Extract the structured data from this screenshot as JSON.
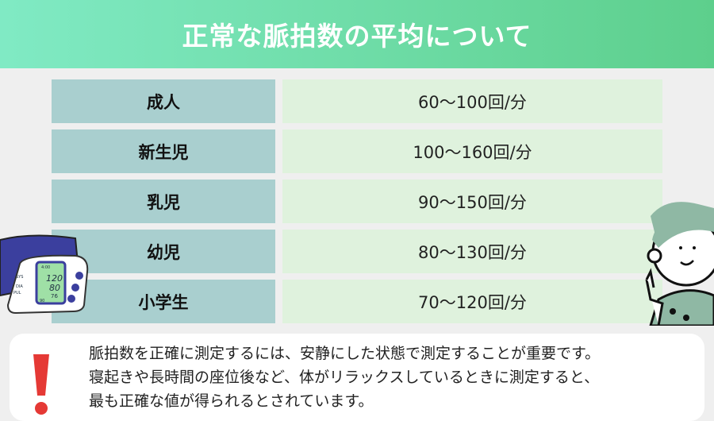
{
  "title": "正常な脈拍数の平均について",
  "rows": [
    {
      "label": "成人",
      "value": "60〜100回/分"
    },
    {
      "label": "新生児",
      "value": "100〜160回/分"
    },
    {
      "label": "乳児",
      "value": "90〜150回/分"
    },
    {
      "label": "幼児",
      "value": "80〜130回/分"
    },
    {
      "label": "小学生",
      "value": "70〜120回/分"
    }
  ],
  "monitor": {
    "time": "4:00",
    "sys_label": "SYS",
    "dia_label": "DIA",
    "pul_label": "PUL",
    "sys": "120",
    "dia": "80",
    "pul": "76",
    "bottom": "90"
  },
  "note": {
    "lines": [
      "脈拍数を正確に測定するには、安静にした状態で測定することが重要です。",
      "寝起きや長時間の座位後など、体がリラックスしているときに測定すると、",
      "最も正確な値が得られるとされています。"
    ]
  },
  "colors": {
    "header_start": "#80eac4",
    "header_end": "#5dcf8c",
    "label_bg": "#a9cfcf",
    "value_bg": "#dff2dd",
    "alert": "#e53935"
  }
}
